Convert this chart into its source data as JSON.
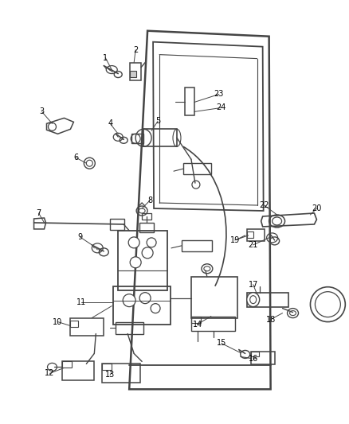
{
  "background_color": "#ffffff",
  "line_color": "#444444",
  "text_color": "#000000",
  "figure_width": 4.38,
  "figure_height": 5.33,
  "dpi": 100
}
